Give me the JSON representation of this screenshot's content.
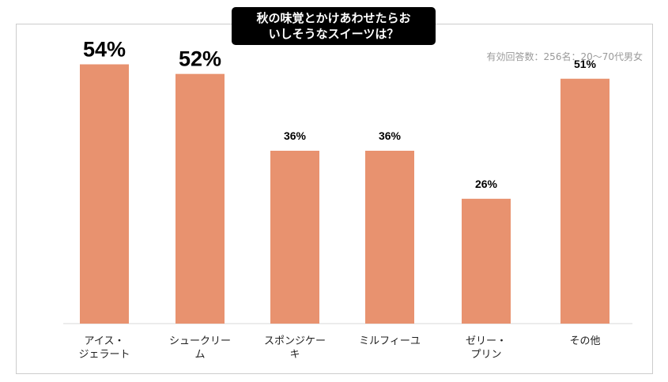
{
  "chart_data": {
    "type": "bar",
    "title_lines": [
      "秋の味覚とかけあわせたらお",
      "いしそうなスイーツは？"
    ],
    "subtitle": "有効回答数：256名：20〜70代男女",
    "categories": [
      [
        "アイス・",
        "ジェラート"
      ],
      [
        "シュークリー",
        "ム"
      ],
      [
        "スポンジケー",
        "キ"
      ],
      [
        "ミルフィーユ"
      ],
      [
        "ゼリー・",
        "プリン"
      ],
      [
        "その他"
      ]
    ],
    "values": [
      54,
      52,
      36,
      36,
      26,
      51
    ],
    "value_labels": [
      "54%",
      "52%",
      "36%",
      "36%",
      "26%",
      "51%"
    ],
    "ylim": [
      0,
      60
    ],
    "grid": false,
    "bar_color": "#e8926f"
  }
}
